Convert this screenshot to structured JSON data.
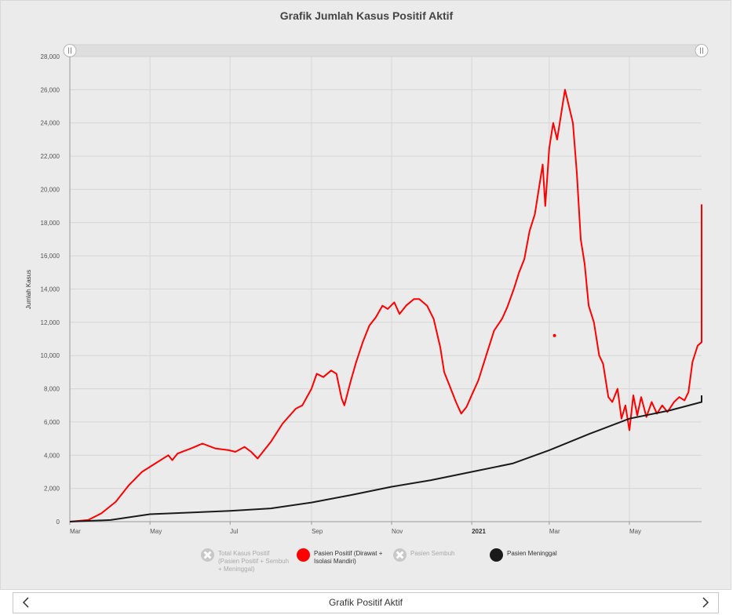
{
  "chart_data": {
    "type": "line",
    "title": "Grafik Jumlah Kasus Positif Aktif",
    "ylabel": "Jumlah Kasus",
    "xlabel": "",
    "ylim": [
      0,
      28000
    ],
    "y_ticks": [
      0,
      2000,
      4000,
      6000,
      8000,
      10000,
      12000,
      14000,
      16000,
      18000,
      20000,
      22000,
      24000,
      26000,
      28000
    ],
    "y_tick_labels": [
      "0",
      "2,000",
      "4,000",
      "6,000",
      "8,000",
      "10,000",
      "12,000",
      "14,000",
      "16,000",
      "18,000",
      "20,000",
      "22,000",
      "24,000",
      "26,000",
      "28,000"
    ],
    "x_range": [
      "2020-03-01",
      "2021-06-25"
    ],
    "x_ticks": [
      {
        "date": "2020-03-01",
        "label": "Mar",
        "bold": false
      },
      {
        "date": "2020-05-01",
        "label": "May",
        "bold": false
      },
      {
        "date": "2020-07-01",
        "label": "Jul",
        "bold": false
      },
      {
        "date": "2020-09-01",
        "label": "Sep",
        "bold": false
      },
      {
        "date": "2020-11-01",
        "label": "Nov",
        "bold": false
      },
      {
        "date": "2021-01-01",
        "label": "2021",
        "bold": true
      },
      {
        "date": "2021-03-01",
        "label": "Mar",
        "bold": false
      },
      {
        "date": "2021-05-01",
        "label": "May",
        "bold": false
      }
    ],
    "grid": true,
    "legend_position": "bottom",
    "series": [
      {
        "name": "Pasien Positif (Dirawat + Isolasi Mandiri)",
        "color": "#ff0000",
        "visible": true,
        "points": [
          [
            "2020-03-01",
            0
          ],
          [
            "2020-03-15",
            100
          ],
          [
            "2020-03-25",
            500
          ],
          [
            "2020-04-05",
            1200
          ],
          [
            "2020-04-15",
            2200
          ],
          [
            "2020-04-25",
            3000
          ],
          [
            "2020-05-05",
            3500
          ],
          [
            "2020-05-15",
            4000
          ],
          [
            "2020-05-18",
            3700
          ],
          [
            "2020-05-22",
            4100
          ],
          [
            "2020-06-01",
            4400
          ],
          [
            "2020-06-10",
            4700
          ],
          [
            "2020-06-20",
            4400
          ],
          [
            "2020-06-30",
            4300
          ],
          [
            "2020-07-05",
            4200
          ],
          [
            "2020-07-12",
            4500
          ],
          [
            "2020-07-17",
            4200
          ],
          [
            "2020-07-22",
            3800
          ],
          [
            "2020-08-01",
            4800
          ],
          [
            "2020-08-10",
            5900
          ],
          [
            "2020-08-20",
            6800
          ],
          [
            "2020-08-25",
            7000
          ],
          [
            "2020-09-01",
            8000
          ],
          [
            "2020-09-05",
            8900
          ],
          [
            "2020-09-10",
            8700
          ],
          [
            "2020-09-16",
            9100
          ],
          [
            "2020-09-20",
            8900
          ],
          [
            "2020-09-24",
            7400
          ],
          [
            "2020-09-26",
            7000
          ],
          [
            "2020-10-01",
            8500
          ],
          [
            "2020-10-05",
            9600
          ],
          [
            "2020-10-10",
            10800
          ],
          [
            "2020-10-15",
            11800
          ],
          [
            "2020-10-20",
            12300
          ],
          [
            "2020-10-25",
            13000
          ],
          [
            "2020-10-29",
            12800
          ],
          [
            "2020-11-03",
            13200
          ],
          [
            "2020-11-07",
            12500
          ],
          [
            "2020-11-12",
            13000
          ],
          [
            "2020-11-18",
            13400
          ],
          [
            "2020-11-22",
            13400
          ],
          [
            "2020-11-28",
            13000
          ],
          [
            "2020-12-03",
            12200
          ],
          [
            "2020-12-08",
            10500
          ],
          [
            "2020-12-11",
            9000
          ],
          [
            "2020-12-15",
            8200
          ],
          [
            "2020-12-20",
            7200
          ],
          [
            "2020-12-24",
            6500
          ],
          [
            "2020-12-28",
            6900
          ],
          [
            "2021-01-02",
            7800
          ],
          [
            "2021-01-06",
            8500
          ],
          [
            "2021-01-12",
            10000
          ],
          [
            "2021-01-18",
            11500
          ],
          [
            "2021-01-24",
            12200
          ],
          [
            "2021-01-28",
            12900
          ],
          [
            "2021-02-02",
            14000
          ],
          [
            "2021-02-06",
            15000
          ],
          [
            "2021-02-10",
            15800
          ],
          [
            "2021-02-14",
            17500
          ],
          [
            "2021-02-18",
            18500
          ],
          [
            "2021-02-21",
            20000
          ],
          [
            "2021-02-24",
            21500
          ],
          [
            "2021-02-26",
            19000
          ],
          [
            "2021-03-01",
            22500
          ],
          [
            "2021-03-04",
            24000
          ],
          [
            "2021-03-07",
            23000
          ],
          [
            "2021-03-10",
            24500
          ],
          [
            "2021-03-13",
            26000
          ],
          [
            "2021-03-16",
            25000
          ],
          [
            "2021-03-19",
            24000
          ],
          [
            "2021-03-22",
            21000
          ],
          [
            "2021-03-25",
            17000
          ],
          [
            "2021-03-28",
            15500
          ],
          [
            "2021-03-31",
            13000
          ],
          [
            "2021-04-04",
            12000
          ],
          [
            "2021-04-08",
            10000
          ],
          [
            "2021-04-11",
            9500
          ],
          [
            "2021-04-15",
            7500
          ],
          [
            "2021-04-18",
            7200
          ],
          [
            "2021-04-22",
            8000
          ],
          [
            "2021-04-25",
            6200
          ],
          [
            "2021-04-28",
            7000
          ],
          [
            "2021-05-01",
            5500
          ],
          [
            "2021-05-04",
            7600
          ],
          [
            "2021-05-07",
            6400
          ],
          [
            "2021-05-10",
            7500
          ],
          [
            "2021-05-14",
            6300
          ],
          [
            "2021-05-18",
            7200
          ],
          [
            "2021-05-22",
            6500
          ],
          [
            "2021-05-26",
            7000
          ],
          [
            "2021-05-30",
            6600
          ],
          [
            "2021-06-04",
            7200
          ],
          [
            "2021-06-08",
            7500
          ],
          [
            "2021-06-12",
            7300
          ],
          [
            "2021-06-15",
            7800
          ],
          [
            "2021-06-18",
            9600
          ],
          [
            "2021-06-22",
            10600
          ],
          [
            "2021-06-26",
            10800
          ],
          [
            "2021-06-30",
            11000
          ],
          [
            "2021-07-04",
            11800
          ],
          [
            "2021-07-08",
            12500
          ],
          [
            "2021-07-11",
            16000
          ],
          [
            "2021-07-14",
            19100
          ]
        ]
      },
      {
        "name": "Pasien Meninggal",
        "color": "#1a1a1a",
        "visible": true,
        "points": [
          [
            "2020-03-01",
            0
          ],
          [
            "2020-04-01",
            100
          ],
          [
            "2020-05-01",
            450
          ],
          [
            "2020-06-01",
            550
          ],
          [
            "2020-07-01",
            650
          ],
          [
            "2020-08-01",
            800
          ],
          [
            "2020-09-01",
            1150
          ],
          [
            "2020-10-01",
            1600
          ],
          [
            "2020-11-01",
            2100
          ],
          [
            "2020-12-01",
            2500
          ],
          [
            "2021-01-01",
            3000
          ],
          [
            "2021-02-01",
            3500
          ],
          [
            "2021-03-01",
            4300
          ],
          [
            "2021-04-01",
            5300
          ],
          [
            "2021-05-01",
            6200
          ],
          [
            "2021-06-01",
            6700
          ],
          [
            "2021-07-01",
            7200
          ],
          [
            "2021-07-14",
            7600
          ]
        ]
      }
    ],
    "outliers": [
      [
        "2021-03-05",
        11200
      ]
    ]
  },
  "legend": [
    {
      "label": "Total Kasus Positif\n(Pasien Positif + Sembuh\n+ Meninggal)",
      "color": "#c8c8c8",
      "visible": false
    },
    {
      "label": "Pasien Positif (Dirawat +\nIsolasi Mandiri)",
      "color": "#ff0000",
      "visible": true
    },
    {
      "label": "Pasien Sembuh",
      "color": "#c8c8c8",
      "visible": false
    },
    {
      "label": "Pasien Meninggal",
      "color": "#1a1a1a",
      "visible": true
    }
  ],
  "bottom_bar": {
    "title": "Grafik Positif Aktif",
    "prev_icon": "chevron-left-icon",
    "next_icon": "chevron-right-icon"
  }
}
